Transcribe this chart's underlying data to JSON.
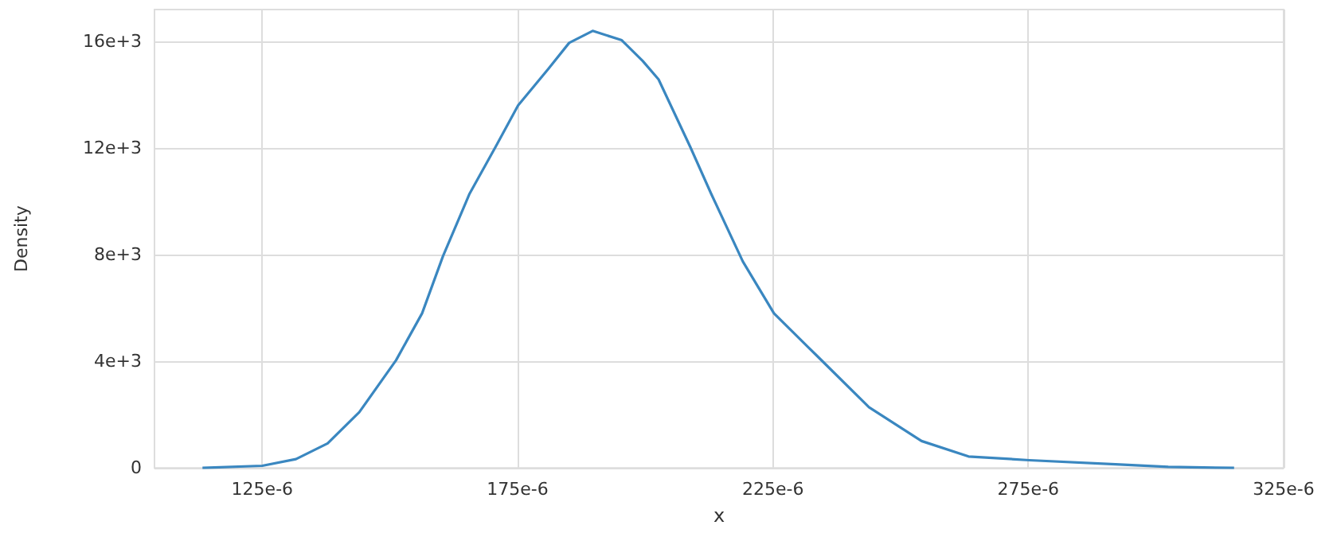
{
  "chart_data": {
    "type": "line",
    "xlabel": "x",
    "ylabel": "Density",
    "x": [
      0.0001133,
      0.000125,
      0.0001316,
      0.0001378,
      0.000144,
      0.0001512,
      0.0001563,
      0.0001604,
      0.0001656,
      0.0001707,
      0.0001751,
      0.000181,
      0.0001851,
      0.0001897,
      0.0001954,
      0.0001995,
      0.0002026,
      0.0002088,
      0.0002129,
      0.0002191,
      0.0002252,
      0.0002335,
      0.0002438,
      0.0002541,
      0.0002633,
      0.0002752,
      0.0002921,
      0.0003024,
      0.0003153
    ],
    "series": [
      {
        "color": "#3a87c0",
        "values": [
          0,
          80,
          330,
          920,
          2090,
          4040,
          5800,
          7950,
          10290,
          12050,
          13600,
          14970,
          15950,
          16400,
          16050,
          15270,
          14580,
          12050,
          10290,
          7750,
          5800,
          4230,
          2280,
          1010,
          430,
          290,
          135,
          40,
          0
        ]
      }
    ],
    "xlim": [
      0.0001039,
      0.000325
    ],
    "xticks": [
      {
        "value": 0.000125,
        "label": "125e-6"
      },
      {
        "value": 0.000175,
        "label": "175e-6"
      },
      {
        "value": 0.000225,
        "label": "225e-6"
      },
      {
        "value": 0.000275,
        "label": "275e-6"
      },
      {
        "value": 0.000325,
        "label": "325e-6"
      }
    ],
    "ylim": [
      0,
      17200
    ],
    "yticks": [
      0,
      {
        "value": 4000,
        "label": "4e+3"
      },
      {
        "value": 8000,
        "label": "8e+3"
      },
      {
        "value": 12000,
        "label": "12e+3"
      },
      {
        "value": 16000,
        "label": "16e+3"
      }
    ],
    "grid": true,
    "marker": "none",
    "line_style": "solid"
  }
}
